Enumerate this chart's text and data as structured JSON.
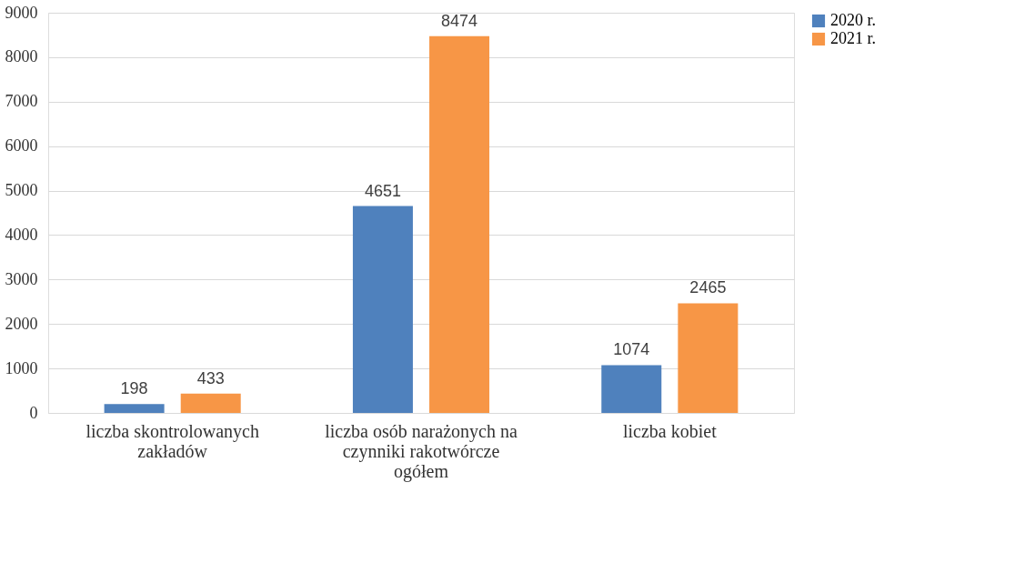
{
  "chart_data": {
    "type": "bar",
    "categories": [
      "liczba skontrolowanych zakładów",
      "liczba osób narażonych na czynniki rakotwórcze ogółem",
      "liczba kobiet"
    ],
    "series": [
      {
        "name": "2020 r.",
        "color": "#4f81bd",
        "values": [
          198,
          4651,
          1074
        ]
      },
      {
        "name": "2021 r.",
        "color": "#f79646",
        "values": [
          433,
          8474,
          2465
        ]
      }
    ],
    "ylim": [
      0,
      9000
    ],
    "yticks": [
      0,
      1000,
      2000,
      3000,
      4000,
      5000,
      6000,
      7000,
      8000,
      9000
    ],
    "grid": "y",
    "legend": "right",
    "data_labels": true
  }
}
